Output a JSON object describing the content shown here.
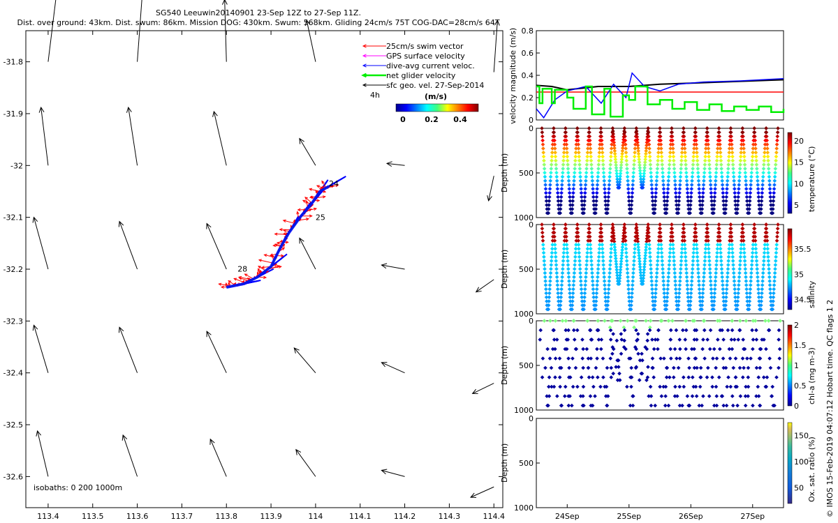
{
  "header": {
    "line1": "SG540 Leeuwin20140901 23-Sep 12Z to 27-Sep 11Z.",
    "line2": "Dist. over ground: 43km. Dist. swum: 86km. Mission DOG: 430km. Swum: 568km. Gliding 24cm/s 75T COG-DAC=28cm/s 64T"
  },
  "credit": "© IMOS 15-Feb-2019 04:07:12 Hobart time. QC flags 1 2",
  "colors": {
    "red": "#ff0000",
    "magenta": "#ff00ff",
    "blue": "#0000ff",
    "green": "#00ee00",
    "black": "#000000"
  },
  "chart_data": [
    {
      "type": "scatter",
      "title": "",
      "xlim": [
        113.35,
        114.42
      ],
      "ylim": [
        -32.66,
        -31.74
      ],
      "xticks": [
        "113.4",
        "113.5",
        "113.6",
        "113.7",
        "113.8",
        "113.9",
        "114",
        "114.1",
        "114.2",
        "114.3",
        "114.4"
      ],
      "yticks": [
        "-31.8",
        "-31.9",
        "-32",
        "-32.1",
        "-32.2",
        "-32.3",
        "-32.4",
        "-32.5",
        "-32.6"
      ],
      "legend": {
        "placement": "top-right",
        "entries": [
          "25cm/s swim vector",
          "GPS surface velocity",
          "dive-avg current veloc.",
          "net glider velocity",
          "sfc geo. vel. 27-Sep-2014"
        ],
        "time_label": "4h",
        "colorbar_title": "(m/s)",
        "colorbar_ticks": [
          "0",
          "0.2",
          "0.4"
        ]
      },
      "isobaths_label": "isobaths: 0   200  1000m",
      "day_labels": [
        {
          "text": "24",
          "lon": 114.03,
          "lat": -32.04
        },
        {
          "text": "25",
          "lon": 114.0,
          "lat": -32.105
        },
        {
          "text": "28",
          "lon": 113.825,
          "lat": -32.205
        }
      ],
      "track": [
        {
          "lon": 113.8,
          "lat": -32.235
        },
        {
          "lon": 113.84,
          "lat": -32.228
        },
        {
          "lon": 113.87,
          "lat": -32.215
        },
        {
          "lon": 113.9,
          "lat": -32.195
        },
        {
          "lon": 113.92,
          "lat": -32.16
        },
        {
          "lon": 113.94,
          "lat": -32.13
        },
        {
          "lon": 113.965,
          "lat": -32.1
        },
        {
          "lon": 113.99,
          "lat": -32.075
        },
        {
          "lon": 114.01,
          "lat": -32.05
        },
        {
          "lon": 114.03,
          "lat": -32.04
        }
      ],
      "geostrophic_vectors": [
        {
          "lon": 113.4,
          "lat": -31.8,
          "u": 0.05,
          "v": 0.35
        },
        {
          "lon": 113.6,
          "lat": -31.8,
          "u": 0.03,
          "v": 0.35
        },
        {
          "lon": 113.8,
          "lat": -31.8,
          "u": -0.01,
          "v": 0.3
        },
        {
          "lon": 114.0,
          "lat": -31.8,
          "u": -0.05,
          "v": 0.2
        },
        {
          "lon": 114.4,
          "lat": -31.82,
          "u": 0.02,
          "v": 0.25
        },
        {
          "lon": 113.4,
          "lat": -32.0,
          "u": -0.04,
          "v": 0.28
        },
        {
          "lon": 113.6,
          "lat": -32.0,
          "u": -0.05,
          "v": 0.28
        },
        {
          "lon": 113.8,
          "lat": -32.0,
          "u": -0.07,
          "v": 0.26
        },
        {
          "lon": 114.0,
          "lat": -32.0,
          "u": -0.09,
          "v": 0.13
        },
        {
          "lon": 114.2,
          "lat": -32.0,
          "u": -0.1,
          "v": 0.01
        },
        {
          "lon": 114.4,
          "lat": -32.02,
          "u": -0.03,
          "v": -0.12
        },
        {
          "lon": 113.4,
          "lat": -32.2,
          "u": -0.08,
          "v": 0.25
        },
        {
          "lon": 113.6,
          "lat": -32.2,
          "u": -0.1,
          "v": 0.23
        },
        {
          "lon": 113.8,
          "lat": -32.2,
          "u": -0.11,
          "v": 0.22
        },
        {
          "lon": 114.0,
          "lat": -32.2,
          "u": -0.09,
          "v": 0.15
        },
        {
          "lon": 114.2,
          "lat": -32.2,
          "u": -0.13,
          "v": 0.02
        },
        {
          "lon": 114.4,
          "lat": -32.22,
          "u": -0.1,
          "v": -0.06
        },
        {
          "lon": 113.4,
          "lat": -32.4,
          "u": -0.08,
          "v": 0.23
        },
        {
          "lon": 113.6,
          "lat": -32.4,
          "u": -0.1,
          "v": 0.22
        },
        {
          "lon": 113.8,
          "lat": -32.4,
          "u": -0.11,
          "v": 0.2
        },
        {
          "lon": 114.0,
          "lat": -32.4,
          "u": -0.12,
          "v": 0.12
        },
        {
          "lon": 114.2,
          "lat": -32.4,
          "u": -0.13,
          "v": 0.05
        },
        {
          "lon": 114.4,
          "lat": -32.42,
          "u": -0.12,
          "v": -0.05
        },
        {
          "lon": 113.4,
          "lat": -32.6,
          "u": -0.06,
          "v": 0.22
        },
        {
          "lon": 113.6,
          "lat": -32.6,
          "u": -0.08,
          "v": 0.2
        },
        {
          "lon": 113.8,
          "lat": -32.6,
          "u": -0.09,
          "v": 0.18
        },
        {
          "lon": 114.0,
          "lat": -32.6,
          "u": -0.11,
          "v": 0.13
        },
        {
          "lon": 114.2,
          "lat": -32.6,
          "u": -0.13,
          "v": 0.03
        },
        {
          "lon": 114.4,
          "lat": -32.62,
          "u": -0.13,
          "v": -0.05
        }
      ]
    },
    {
      "type": "line",
      "ylabel": "velocity magnitude (m/s)",
      "ylim": [
        0,
        0.8
      ],
      "yticks": [
        "0",
        "0.2",
        "0.4",
        "0.6",
        "0.8"
      ],
      "xlim": [
        23.5,
        27.5
      ],
      "series": [
        {
          "color": "#000000",
          "x": [
            23.5,
            23.75,
            24.0,
            24.5,
            25.0,
            25.5,
            26.0,
            26.5,
            27.0,
            27.5
          ],
          "y": [
            0.31,
            0.3,
            0.27,
            0.3,
            0.3,
            0.32,
            0.33,
            0.34,
            0.35,
            0.36
          ]
        },
        {
          "color": "#ff0000",
          "x": [
            23.5,
            27.5
          ],
          "y": [
            0.25,
            0.25
          ]
        },
        {
          "color": "#0000ff",
          "x": [
            23.5,
            23.62,
            23.8,
            24.0,
            24.3,
            24.55,
            24.75,
            24.95,
            25.05,
            25.25,
            25.5,
            25.8,
            26.2,
            26.8,
            27.5
          ],
          "y": [
            0.1,
            0.02,
            0.18,
            0.26,
            0.3,
            0.15,
            0.32,
            0.2,
            0.42,
            0.3,
            0.26,
            0.32,
            0.34,
            0.35,
            0.37
          ]
        },
        {
          "color": "#00ee00",
          "x": [
            23.5,
            23.55,
            23.6,
            23.75,
            23.8,
            24.0,
            24.1,
            24.3,
            24.4,
            24.6,
            24.7,
            24.9,
            25.0,
            25.1,
            25.3,
            25.5,
            25.7,
            25.9,
            26.1,
            26.3,
            26.5,
            26.7,
            26.9,
            27.1,
            27.3,
            27.5
          ],
          "y": [
            0.3,
            0.15,
            0.28,
            0.15,
            0.27,
            0.2,
            0.1,
            0.3,
            0.05,
            0.28,
            0.03,
            0.22,
            0.18,
            0.3,
            0.14,
            0.18,
            0.1,
            0.16,
            0.09,
            0.14,
            0.08,
            0.12,
            0.09,
            0.12,
            0.07,
            0.1
          ]
        }
      ]
    },
    {
      "type": "scatter",
      "ylabel": "Depth (m)",
      "colorbar_label": "temperature (°C)",
      "colorbar_ticks": [
        "5",
        "10",
        "15",
        "20"
      ],
      "clim": [
        3,
        22
      ],
      "ylim": [
        0,
        1000
      ],
      "yticks": [
        "0",
        "500",
        "1000"
      ],
      "dives": 20,
      "max_depth_m": 950
    },
    {
      "type": "scatter",
      "ylabel": "Depth (m)",
      "colorbar_label": "salinity",
      "colorbar_ticks": [
        "34.5",
        "35",
        "35.5"
      ],
      "clim": [
        34.3,
        35.9
      ],
      "ylim": [
        0,
        1000
      ],
      "yticks": [
        "0",
        "500",
        "1000"
      ],
      "dives": 20,
      "max_depth_m": 950
    },
    {
      "type": "scatter",
      "ylabel": "Depth (m)",
      "colorbar_label": "chl-a (mg m-3)",
      "colorbar_ticks": [
        "0",
        "0.5",
        "1",
        "1.5",
        "2"
      ],
      "clim": [
        0,
        2
      ],
      "ylim": [
        0,
        1000
      ],
      "yticks": [
        "0",
        "500",
        "1000"
      ],
      "dives": 20,
      "max_depth_m": 950
    },
    {
      "type": "scatter",
      "ylabel": "Depth (m)",
      "colorbar_label": "Ox. sat. ratio (%)",
      "colorbar_ticks": [
        "50",
        "100",
        "150"
      ],
      "clim": [
        20,
        175
      ],
      "ylim": [
        0,
        1000
      ],
      "yticks": [
        "0",
        "500",
        "1000"
      ],
      "xlim": [
        23.5,
        27.5
      ],
      "xticks": [
        "24Sep",
        "25Sep",
        "26Sep",
        "27Sep"
      ],
      "xtick_days": [
        24,
        25,
        26,
        27
      ]
    }
  ]
}
